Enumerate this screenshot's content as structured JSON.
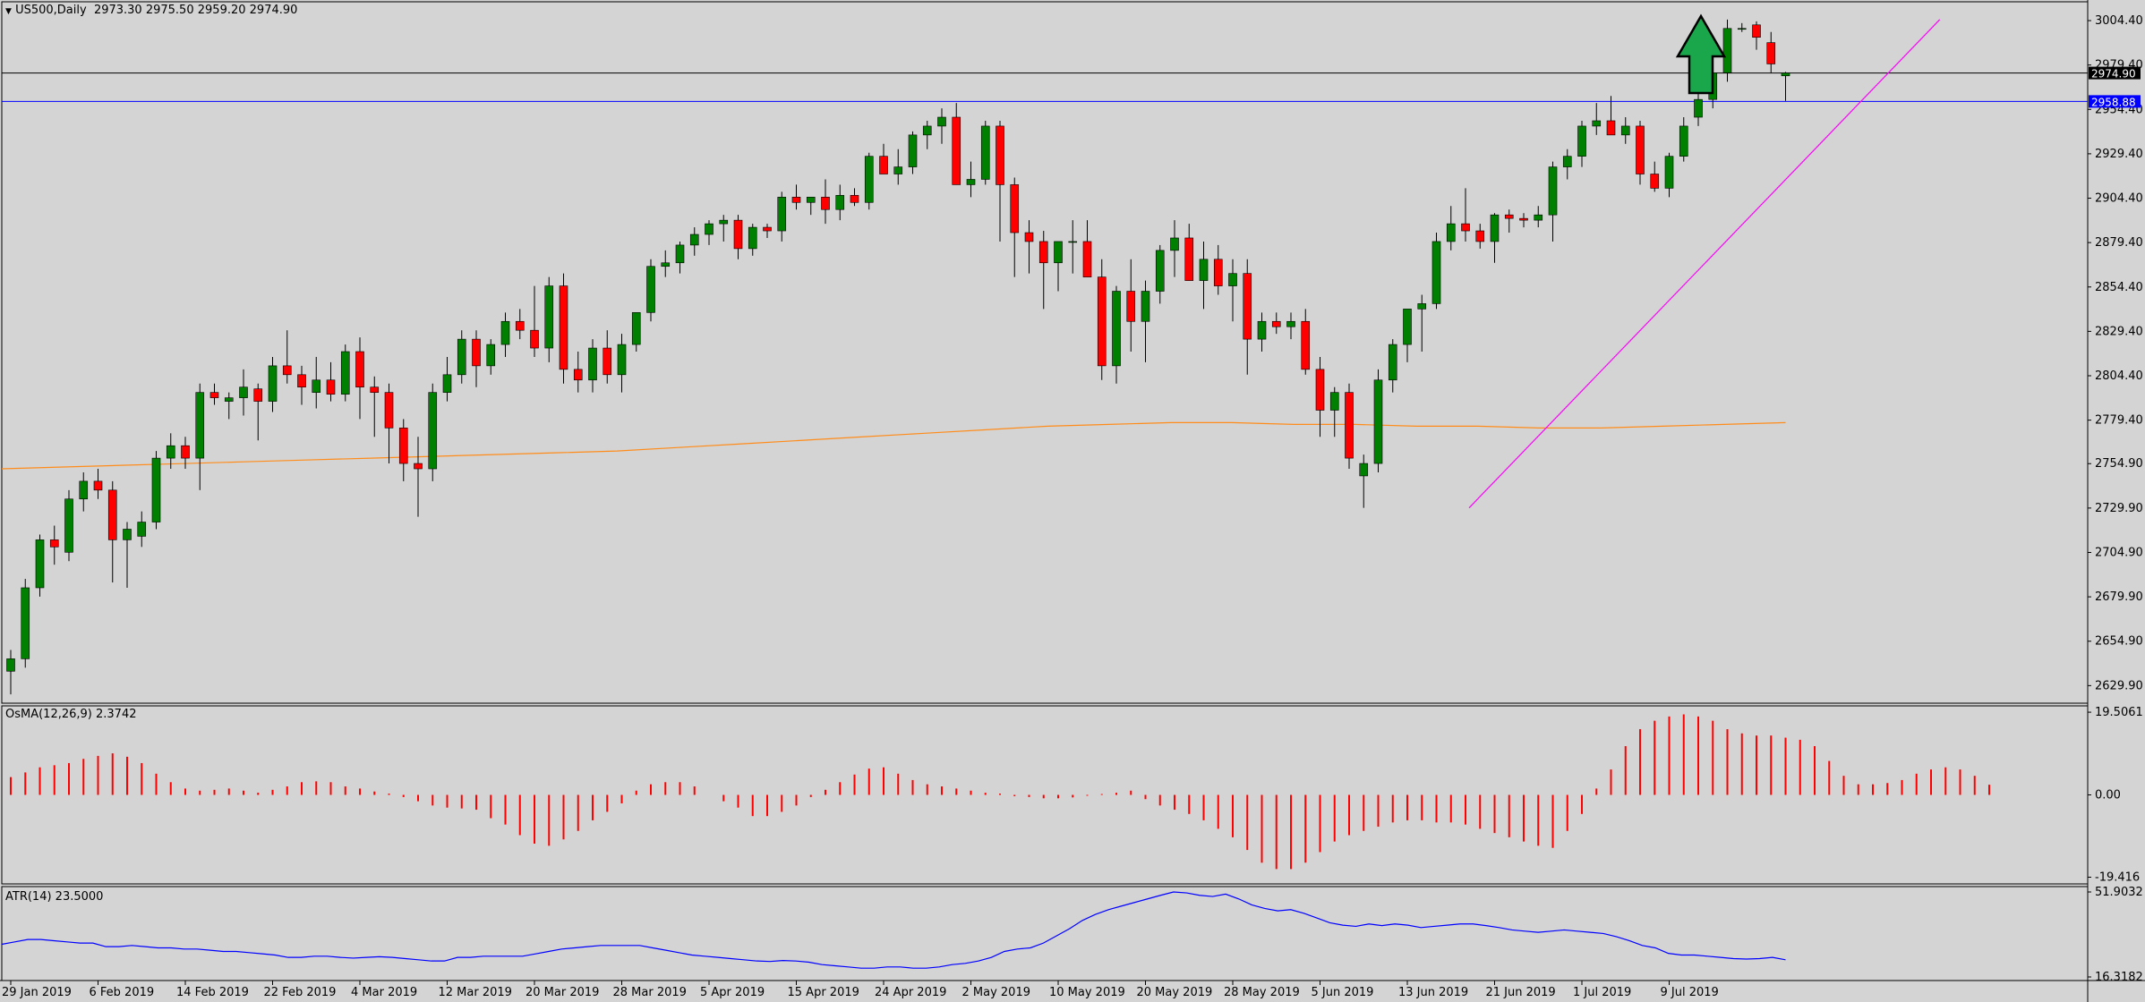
{
  "header": {
    "symbol": "US500,Daily",
    "open": "2973.30",
    "high": "2975.50",
    "low": "2959.20",
    "close": "2974.90"
  },
  "colors": {
    "background": "#d4d4d4",
    "bull_candle": "#008000",
    "bear_candle": "#ff0000",
    "wick": "#000000",
    "moving_average": "#ff8c1a",
    "trendline": "#ff00ff",
    "support_line": "#0000ff",
    "price_line": "#000000",
    "osma_bars": "#ff0000",
    "atr_line": "#0000ff",
    "arrow_fill": "#1aa64a"
  },
  "chart_data": [
    {
      "type": "candlestick",
      "title": "US500,Daily",
      "price_axis_ticks": [
        "3004.40",
        "2979.40",
        "2954.40",
        "2929.40",
        "2904.40",
        "2879.40",
        "2854.40",
        "2829.40",
        "2804.40",
        "2779.40",
        "2754.90",
        "2729.90",
        "2704.90",
        "2679.90",
        "2654.90",
        "2629.90"
      ],
      "ylim": [
        2620,
        3015
      ],
      "x_ticks": [
        "29 Jan 2019",
        "6 Feb 2019",
        "14 Feb 2019",
        "22 Feb 2019",
        "4 Mar 2019",
        "12 Mar 2019",
        "20 Mar 2019",
        "28 Mar 2019",
        "5 Apr 2019",
        "15 Apr 2019",
        "24 Apr 2019",
        "2 May 2019",
        "10 May 2019",
        "20 May 2019",
        "28 May 2019",
        "5 Jun 2019",
        "13 Jun 2019",
        "21 Jun 2019",
        "1 Jul 2019",
        "9 Jul 2019"
      ],
      "current_price_label": "2974.90",
      "support_level_label": "2958.88",
      "current_price": 2974.9,
      "support_level": 2958.88,
      "candles": [
        [
          2638,
          2650,
          2625,
          2645
        ],
        [
          2645,
          2690,
          2640,
          2685
        ],
        [
          2685,
          2715,
          2680,
          2712
        ],
        [
          2712,
          2720,
          2698,
          2708
        ],
        [
          2705,
          2740,
          2700,
          2735
        ],
        [
          2735,
          2750,
          2728,
          2745
        ],
        [
          2745,
          2752,
          2735,
          2740
        ],
        [
          2740,
          2745,
          2688,
          2712
        ],
        [
          2712,
          2722,
          2685,
          2718
        ],
        [
          2714,
          2728,
          2708,
          2722
        ],
        [
          2722,
          2762,
          2718,
          2758
        ],
        [
          2758,
          2772,
          2752,
          2765
        ],
        [
          2765,
          2770,
          2752,
          2758
        ],
        [
          2758,
          2800,
          2740,
          2795
        ],
        [
          2795,
          2800,
          2788,
          2792
        ],
        [
          2790,
          2795,
          2780,
          2792
        ],
        [
          2792,
          2808,
          2782,
          2798
        ],
        [
          2797,
          2800,
          2768,
          2790
        ],
        [
          2790,
          2815,
          2784,
          2810
        ],
        [
          2810,
          2830,
          2800,
          2805
        ],
        [
          2805,
          2810,
          2788,
          2798
        ],
        [
          2795,
          2815,
          2786,
          2802
        ],
        [
          2802,
          2812,
          2790,
          2794
        ],
        [
          2794,
          2822,
          2790,
          2818
        ],
        [
          2818,
          2826,
          2780,
          2798
        ],
        [
          2798,
          2804,
          2770,
          2795
        ],
        [
          2795,
          2800,
          2755,
          2775
        ],
        [
          2775,
          2780,
          2745,
          2755
        ],
        [
          2755,
          2770,
          2725,
          2752
        ],
        [
          2752,
          2800,
          2745,
          2795
        ],
        [
          2795,
          2815,
          2790,
          2805
        ],
        [
          2805,
          2830,
          2800,
          2825
        ],
        [
          2825,
          2830,
          2798,
          2810
        ],
        [
          2810,
          2825,
          2805,
          2822
        ],
        [
          2822,
          2840,
          2815,
          2835
        ],
        [
          2835,
          2842,
          2825,
          2830
        ],
        [
          2830,
          2855,
          2815,
          2820
        ],
        [
          2820,
          2860,
          2812,
          2855
        ],
        [
          2855,
          2862,
          2800,
          2808
        ],
        [
          2808,
          2818,
          2795,
          2802
        ],
        [
          2802,
          2825,
          2795,
          2820
        ],
        [
          2820,
          2830,
          2800,
          2805
        ],
        [
          2805,
          2828,
          2795,
          2822
        ],
        [
          2822,
          2840,
          2818,
          2840
        ],
        [
          2840,
          2870,
          2835,
          2866
        ],
        [
          2866,
          2875,
          2860,
          2868
        ],
        [
          2868,
          2880,
          2862,
          2878
        ],
        [
          2878,
          2888,
          2872,
          2884
        ],
        [
          2884,
          2892,
          2878,
          2890
        ],
        [
          2890,
          2895,
          2880,
          2892
        ],
        [
          2892,
          2895,
          2870,
          2876
        ],
        [
          2876,
          2890,
          2872,
          2888
        ],
        [
          2888,
          2890,
          2882,
          2886
        ],
        [
          2886,
          2908,
          2880,
          2905
        ],
        [
          2905,
          2912,
          2898,
          2902
        ],
        [
          2902,
          2905,
          2895,
          2905
        ],
        [
          2905,
          2915,
          2890,
          2898
        ],
        [
          2898,
          2912,
          2892,
          2906
        ],
        [
          2906,
          2910,
          2900,
          2902
        ],
        [
          2902,
          2930,
          2898,
          2928
        ],
        [
          2928,
          2935,
          2918,
          2918
        ],
        [
          2918,
          2932,
          2912,
          2922
        ],
        [
          2922,
          2942,
          2918,
          2940
        ],
        [
          2940,
          2948,
          2932,
          2945
        ],
        [
          2945,
          2955,
          2935,
          2950
        ],
        [
          2950,
          2958,
          2912,
          2912
        ],
        [
          2912,
          2925,
          2905,
          2915
        ],
        [
          2915,
          2948,
          2912,
          2945
        ],
        [
          2945,
          2948,
          2880,
          2912
        ],
        [
          2912,
          2916,
          2860,
          2885
        ],
        [
          2885,
          2892,
          2862,
          2880
        ],
        [
          2880,
          2886,
          2842,
          2868
        ],
        [
          2868,
          2880,
          2852,
          2880
        ],
        [
          2880,
          2892,
          2862,
          2880
        ],
        [
          2880,
          2892,
          2860,
          2860
        ],
        [
          2860,
          2870,
          2802,
          2810
        ],
        [
          2810,
          2855,
          2800,
          2852
        ],
        [
          2852,
          2870,
          2818,
          2835
        ],
        [
          2835,
          2858,
          2812,
          2852
        ],
        [
          2852,
          2878,
          2845,
          2875
        ],
        [
          2875,
          2892,
          2860,
          2882
        ],
        [
          2882,
          2890,
          2858,
          2858
        ],
        [
          2858,
          2880,
          2842,
          2870
        ],
        [
          2870,
          2878,
          2850,
          2855
        ],
        [
          2855,
          2870,
          2835,
          2862
        ],
        [
          2862,
          2870,
          2805,
          2825
        ],
        [
          2825,
          2840,
          2818,
          2835
        ],
        [
          2835,
          2840,
          2828,
          2832
        ],
        [
          2832,
          2840,
          2825,
          2835
        ],
        [
          2835,
          2842,
          2805,
          2808
        ],
        [
          2808,
          2815,
          2770,
          2785
        ],
        [
          2785,
          2798,
          2770,
          2795
        ],
        [
          2795,
          2800,
          2752,
          2758
        ],
        [
          2748,
          2760,
          2730,
          2755
        ],
        [
          2755,
          2808,
          2750,
          2802
        ],
        [
          2802,
          2825,
          2795,
          2822
        ],
        [
          2822,
          2840,
          2812,
          2842
        ],
        [
          2842,
          2850,
          2818,
          2845
        ],
        [
          2845,
          2885,
          2842,
          2880
        ],
        [
          2880,
          2900,
          2875,
          2890
        ],
        [
          2890,
          2910,
          2880,
          2886
        ],
        [
          2886,
          2890,
          2876,
          2880
        ],
        [
          2880,
          2896,
          2868,
          2895
        ],
        [
          2895,
          2898,
          2885,
          2893
        ],
        [
          2893,
          2896,
          2888,
          2892
        ],
        [
          2892,
          2900,
          2888,
          2895
        ],
        [
          2895,
          2925,
          2880,
          2922
        ],
        [
          2922,
          2932,
          2915,
          2928
        ],
        [
          2928,
          2948,
          2922,
          2945
        ],
        [
          2945,
          2958,
          2940,
          2948
        ],
        [
          2948,
          2962,
          2942,
          2940
        ],
        [
          2940,
          2950,
          2935,
          2945
        ],
        [
          2945,
          2948,
          2912,
          2918
        ],
        [
          2918,
          2925,
          2908,
          2910
        ],
        [
          2910,
          2930,
          2905,
          2928
        ],
        [
          2928,
          2950,
          2925,
          2945
        ],
        [
          2950,
          2965,
          2945,
          2960
        ],
        [
          2960,
          2978,
          2955,
          2975
        ],
        [
          2975,
          3005,
          2970,
          3000
        ],
        [
          3000,
          3003,
          2998,
          3000
        ],
        [
          3002,
          3004,
          2988,
          2995
        ],
        [
          2992,
          2998,
          2975,
          2980
        ],
        [
          2973.3,
          2975.5,
          2959.2,
          2974.9
        ]
      ],
      "moving_average_series": [
        2752,
        2753,
        2754,
        2755,
        2756,
        2757,
        2758,
        2759,
        2760,
        2761,
        2762,
        2764,
        2766,
        2768,
        2770,
        2772,
        2774,
        2776,
        2777,
        2778,
        2778,
        2777,
        2777,
        2776,
        2776,
        2775,
        2775,
        2776,
        2777,
        2778
      ],
      "trendline": [
        {
          "from_candle": 100,
          "price_from": 2730
        },
        {
          "to_candle": 131,
          "price_to": 3005
        }
      ]
    },
    {
      "type": "bar",
      "title": "OsMA(12,26,9) 2.3742",
      "ticks": [
        "19.5061",
        "0.00",
        "-19.416"
      ],
      "ylim": [
        -21,
        21
      ],
      "values": [
        4.2,
        5.3,
        6.5,
        7.0,
        7.5,
        8.5,
        9.2,
        9.8,
        9.0,
        7.5,
        5.0,
        3.0,
        1.5,
        1.0,
        1.2,
        1.5,
        1.0,
        0.5,
        1.2,
        2.0,
        3.0,
        3.2,
        3.0,
        2.0,
        1.5,
        0.8,
        0.3,
        -0.5,
        -1.5,
        -2.5,
        -3.0,
        -3.2,
        -3.5,
        -5.5,
        -7.0,
        -9.5,
        -11.5,
        -12.0,
        -10.5,
        -8.5,
        -6.0,
        -4.0,
        -2.0,
        1.0,
        2.5,
        3.0,
        3.0,
        2.0,
        0,
        -1.5,
        -3.0,
        -5.0,
        -5.0,
        -4.0,
        -2.5,
        -0.5,
        1.2,
        3.0,
        4.8,
        6.2,
        6.5,
        5.0,
        3.5,
        2.5,
        2.0,
        1.5,
        1.0,
        0.5,
        0.3,
        -0.3,
        -0.5,
        -0.8,
        -0.8,
        -0.6,
        -0.2,
        0.2,
        0.5,
        1.0,
        -1.0,
        -2.5,
        -3.5,
        -4.5,
        -6.0,
        -8.0,
        -10.0,
        -13.0,
        -16.0,
        -17.5,
        -17.5,
        -16.0,
        -13.5,
        -11.0,
        -9.5,
        -8.5,
        -7.5,
        -6.5,
        -6.0,
        -6.0,
        -6.5,
        -6.5,
        -7.0,
        -8.0,
        -9.0,
        -10.0,
        -11.0,
        -12.0,
        -12.5,
        -8.5,
        -4.5,
        1.5,
        6.0,
        11.5,
        15.5,
        17.5,
        18.5,
        19.0,
        18.5,
        17.5,
        15.5,
        14.5,
        14.0,
        14.0,
        13.5,
        13.0,
        11.5,
        8.0,
        4.5,
        2.5,
        2.5,
        2.8,
        3.5,
        5.0,
        6.0,
        6.5,
        6.0,
        4.5,
        2.4
      ]
    },
    {
      "type": "line",
      "title": "ATR(14) 23.5000",
      "ticks": [
        "51.9032",
        "16.3182"
      ],
      "ylim": [
        16.3182,
        51.9032
      ],
      "values": [
        30,
        31,
        32,
        32,
        31.5,
        31,
        30.5,
        30.5,
        29,
        29,
        29.5,
        29,
        28.5,
        28.5,
        28,
        28,
        27.5,
        27,
        27,
        26.5,
        26,
        25.5,
        24.5,
        24.5,
        25,
        25,
        24.5,
        24.2,
        24.5,
        24.8,
        24.5,
        24,
        23.5,
        23,
        23,
        24.5,
        24.5,
        25,
        25,
        25,
        25,
        26,
        27,
        28,
        28.5,
        29,
        29.5,
        29.5,
        29.5,
        29.5,
        28.5,
        27.5,
        26.5,
        25.5,
        25,
        24.5,
        24,
        23.5,
        23,
        22.8,
        23.2,
        23,
        22.5,
        21.5,
        21,
        20.5,
        20,
        20,
        20.5,
        20.5,
        20,
        20,
        20.5,
        21.5,
        22,
        23,
        24.5,
        27,
        28,
        28.5,
        30.5,
        33.5,
        36.5,
        40,
        42.5,
        44.5,
        46,
        47.5,
        49,
        50.5,
        51.9,
        51.5,
        50.5,
        50,
        51,
        49,
        46.5,
        45,
        44,
        44.5,
        43,
        41,
        39,
        38,
        37.5,
        38.5,
        37.8,
        38.5,
        38,
        37,
        37.5,
        38,
        38.5,
        38.5,
        37.8,
        37,
        36,
        35.5,
        35,
        35.5,
        36,
        35.5,
        35,
        34.5,
        33.2,
        31.5,
        29.5,
        28.5,
        26.2,
        25.5,
        25.5,
        25,
        24.5,
        24,
        23.8,
        24,
        24.5,
        23.5
      ]
    }
  ]
}
